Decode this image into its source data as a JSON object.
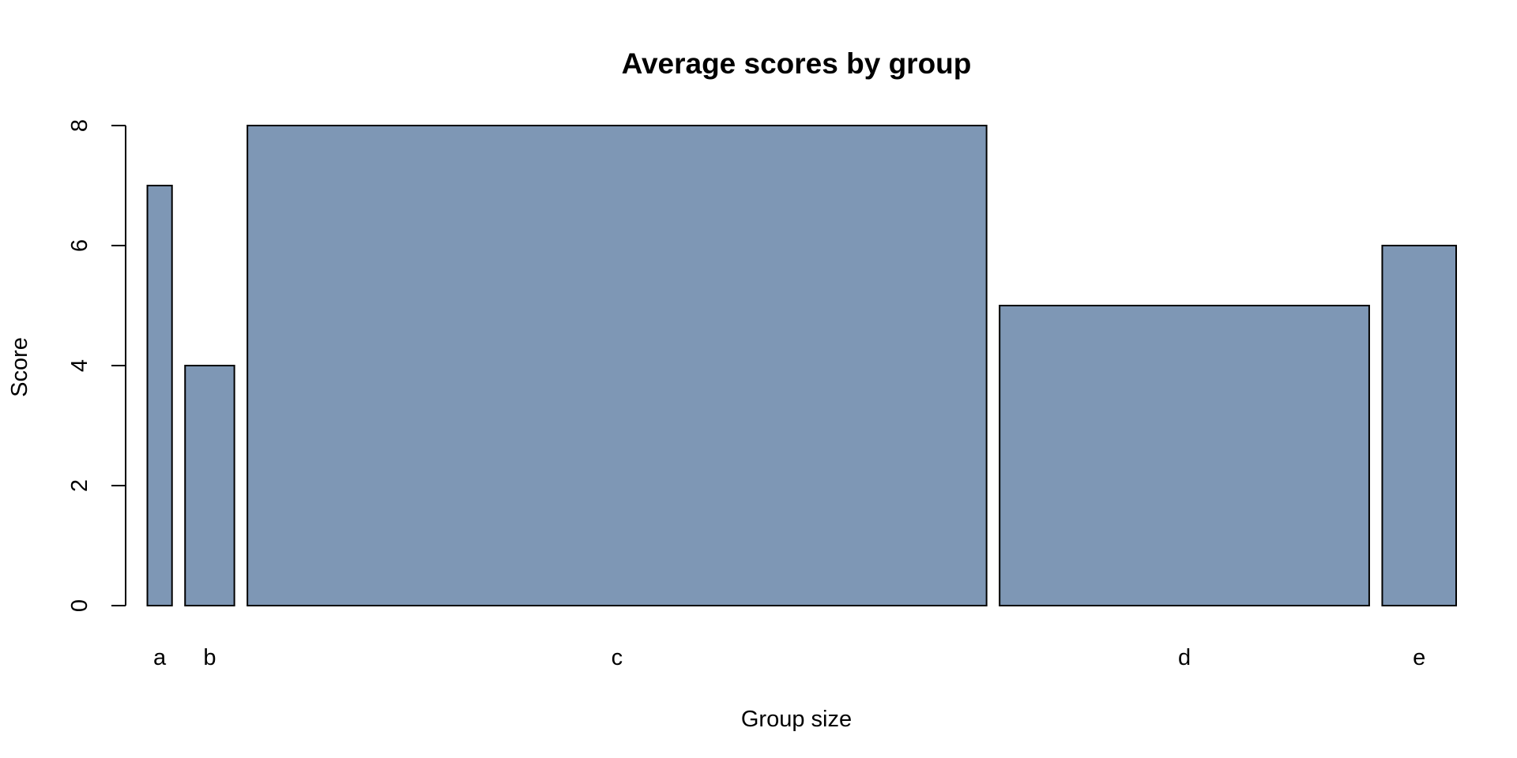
{
  "chart_data": {
    "type": "bar",
    "title": "Average scores by group",
    "xlabel": "Group size",
    "ylabel": "Score",
    "categories": [
      "a",
      "b",
      "c",
      "d",
      "e"
    ],
    "values": [
      7,
      4,
      8,
      5,
      6
    ],
    "relative_widths": [
      1,
      2,
      30,
      15,
      3
    ],
    "ylim": [
      0,
      8
    ],
    "yticks": [
      0,
      2,
      4,
      6,
      8
    ],
    "bar_color": "#7e97b5",
    "grid": false,
    "legend": "none"
  }
}
